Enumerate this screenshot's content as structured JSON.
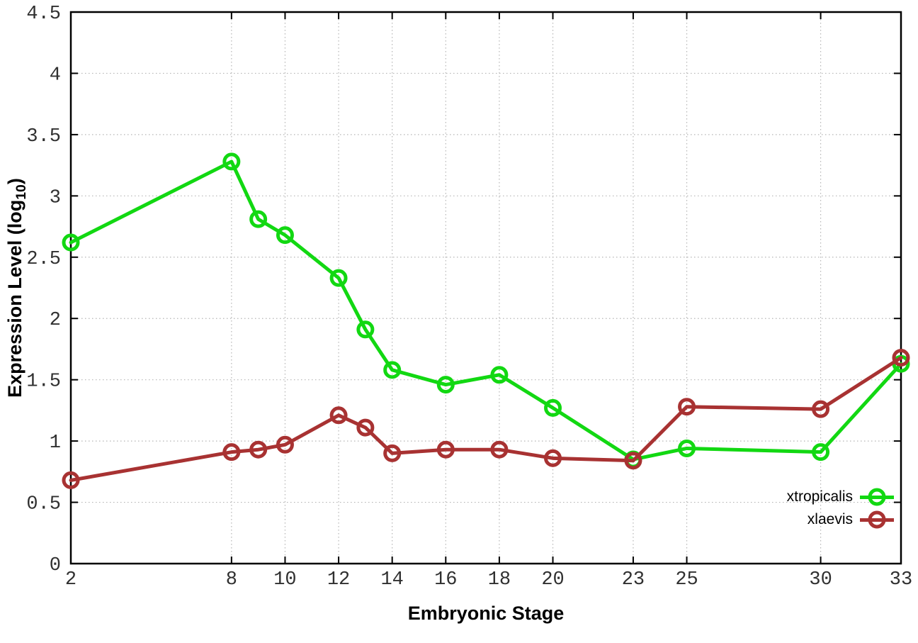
{
  "chart_data": {
    "type": "line",
    "title": "",
    "xlabel": "Embryonic Stage",
    "ylabel": "Expression Level (log10)",
    "ylabel_main": "Expression Level (log",
    "ylabel_sub": "10",
    "ylabel_close": ")",
    "xlim": [
      2,
      33
    ],
    "ylim": [
      0,
      4.5
    ],
    "grid": true,
    "x_ticks": [
      2,
      8,
      10,
      12,
      14,
      16,
      18,
      20,
      23,
      25,
      30,
      33
    ],
    "x_tick_labels": [
      "2",
      "8",
      "10",
      "12",
      "14",
      "16",
      "18",
      "20",
      "23",
      "25",
      "30",
      "33"
    ],
    "y_ticks": [
      0,
      0.5,
      1,
      1.5,
      2,
      2.5,
      3,
      3.5,
      4,
      4.5
    ],
    "y_tick_labels": [
      "0",
      "0.5",
      "1",
      "1.5",
      "2",
      "2.5",
      "3",
      "3.5",
      "4",
      "4.5"
    ],
    "x": [
      2,
      8,
      9,
      10,
      12,
      13,
      14,
      16,
      18,
      20,
      23,
      25,
      30,
      33
    ],
    "series": [
      {
        "name": "xtropicalis",
        "color": "#12d812",
        "marker": "open-circle",
        "values": [
          2.62,
          3.28,
          2.81,
          2.68,
          2.33,
          1.91,
          1.58,
          1.46,
          1.54,
          1.27,
          0.85,
          0.94,
          0.91,
          1.63
        ]
      },
      {
        "name": "xlaevis",
        "color": "#a83232",
        "marker": "open-circle",
        "values": [
          0.68,
          0.91,
          0.93,
          0.97,
          1.21,
          1.11,
          0.9,
          0.93,
          0.93,
          0.86,
          0.84,
          1.28,
          1.26,
          1.68
        ]
      }
    ],
    "legend": {
      "position": "inside-bottom-right",
      "items": [
        "xtropicalis",
        "xlaevis"
      ]
    },
    "colors": {
      "grid": "#b5b5b5",
      "border": "#000000",
      "tick_label": "#303030"
    }
  }
}
